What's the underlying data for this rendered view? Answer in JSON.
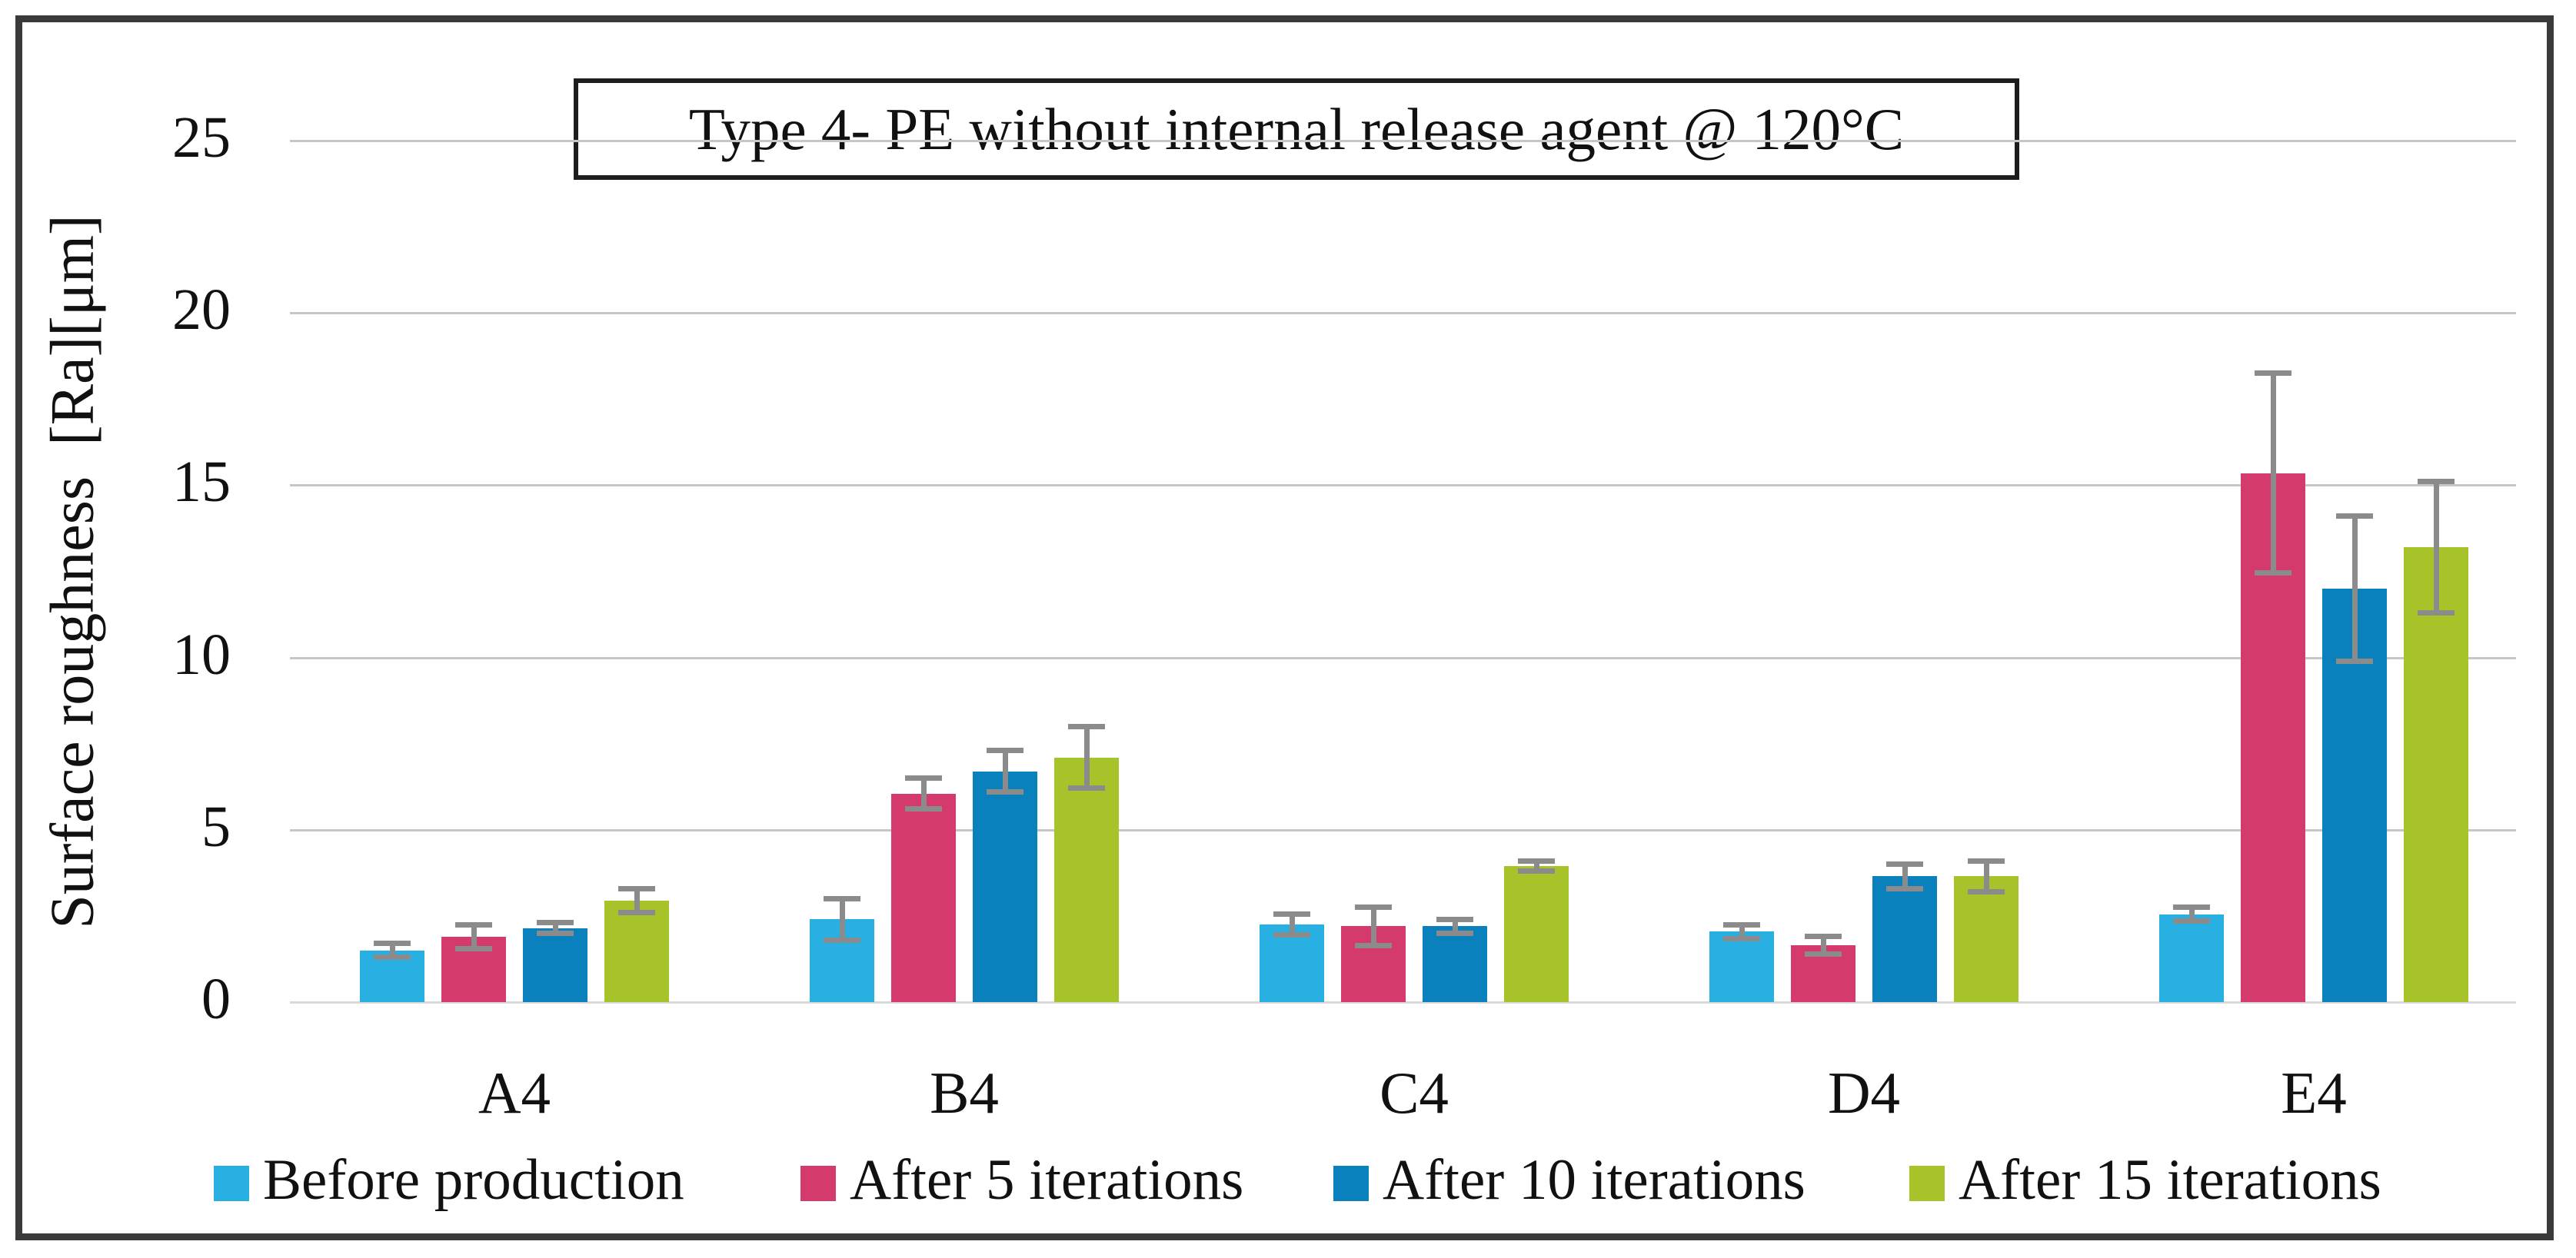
{
  "figure": {
    "title": "Type 4- PE without internal release agent @ 120°C",
    "y_axis_title": "Surface roughness  [Ra][μm]"
  },
  "colors": {
    "series": [
      "#29b0e2",
      "#d43a6b",
      "#0a80bd",
      "#a7c32a"
    ],
    "error_bar": "#8b8b8b",
    "gridline": "#c7c7c7",
    "text": "#111111",
    "figure_border": "#3a3a3a"
  },
  "chart_data": {
    "type": "bar",
    "title": "Type 4- PE without internal release agent @ 120°C",
    "xlabel": "",
    "ylabel": "Surface roughness  [Ra][μm]",
    "categories": [
      "A4",
      "B4",
      "C4",
      "D4",
      "E4"
    ],
    "series": [
      {
        "name": "Before production",
        "values": [
          1.5,
          2.4,
          2.25,
          2.05,
          2.55
        ],
        "errors": [
          0.2,
          0.6,
          0.3,
          0.2,
          0.2
        ]
      },
      {
        "name": "After 5 iterations",
        "values": [
          1.9,
          6.05,
          2.2,
          1.65,
          15.35
        ],
        "errors": [
          0.35,
          0.45,
          0.55,
          0.25,
          2.9
        ]
      },
      {
        "name": "After 10 iterations",
        "values": [
          2.15,
          6.7,
          2.2,
          3.65,
          12.0
        ],
        "errors": [
          0.15,
          0.6,
          0.2,
          0.35,
          2.1
        ]
      },
      {
        "name": "After 15 iterations",
        "values": [
          2.95,
          7.1,
          3.95,
          3.65,
          13.2
        ],
        "errors": [
          0.35,
          0.9,
          0.15,
          0.45,
          1.9
        ]
      }
    ],
    "ylim": [
      0,
      25
    ],
    "yticks": [
      0,
      5,
      10,
      15,
      20,
      25
    ],
    "grid": "horizontal-major",
    "legend_position": "bottom",
    "error_bars": true
  }
}
